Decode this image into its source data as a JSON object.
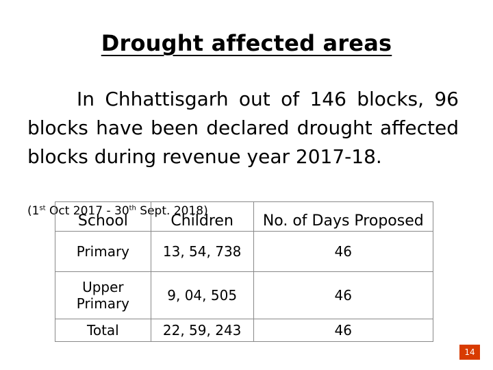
{
  "title": "Drought affected areas",
  "paragraph": "In Chhattisgarh out of 146 blocks, 96 blocks have been declared drought affected blocks during revenue year 2017-18.",
  "period": {
    "open": "(1",
    "sup1": "st",
    "mid": " Oct 2017 - 30",
    "sup2": "th",
    "close": " Sept. 2018)"
  },
  "table": {
    "headers": [
      "School",
      "Children",
      "No. of Days Proposed"
    ],
    "rows": [
      [
        "Primary",
        "13, 54, 738",
        "46"
      ],
      [
        "Upper Primary",
        "9, 04, 505",
        "46"
      ],
      [
        "Total",
        "22, 59, 243",
        "46"
      ]
    ]
  },
  "page_number": "14",
  "colors": {
    "page_number_bg": "#d83b01",
    "table_border": "#888888"
  }
}
